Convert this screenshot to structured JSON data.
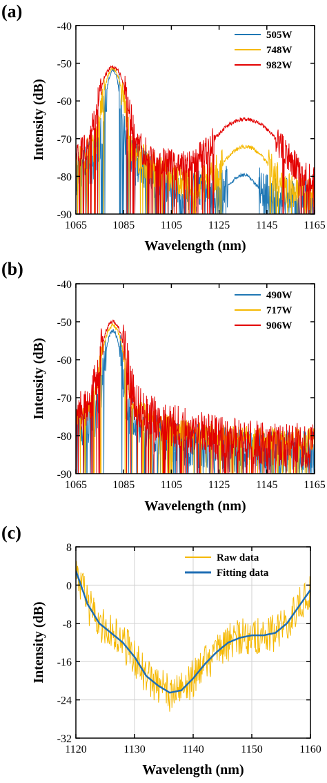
{
  "colors": {
    "blue": "#1f77b4",
    "orange": "#f5b800",
    "red": "#e30000",
    "fit": "#1f6eb4"
  },
  "chart_data": [
    {
      "type": "line",
      "panel_label": "(a)",
      "xlabel": "Wavelength (nm)",
      "ylabel": "Intensity (dB)",
      "xlim": [
        1065,
        1165
      ],
      "ylim": [
        -90,
        -40
      ],
      "xticks": [
        1065,
        1085,
        1105,
        1125,
        1145,
        1165
      ],
      "yticks": [
        -40,
        -50,
        -60,
        -70,
        -80,
        -90
      ],
      "legend_position": "top-right",
      "series": [
        {
          "name": "505W",
          "color": "#1f77b4",
          "peaks": [
            {
              "center": 1080.5,
              "level": -52,
              "width": 1.6
            },
            {
              "center": 1135,
              "level": -81,
              "width": 4
            }
          ],
          "noise_floor": -87,
          "noise_amplitude": 6
        },
        {
          "name": "748W",
          "color": "#f5b800",
          "peaks": [
            {
              "center": 1080.5,
              "level": -51.5,
              "width": 2.2
            },
            {
              "center": 1136,
              "level": -72.5,
              "width": 6
            }
          ],
          "noise_floor": -86,
          "noise_amplitude": 5
        },
        {
          "name": "982W",
          "color": "#e30000",
          "peaks": [
            {
              "center": 1080.5,
              "level": -51,
              "width": 3
            },
            {
              "center": 1136,
              "level": -65,
              "width": 8
            }
          ],
          "noise_floor": -84,
          "noise_amplitude": 4
        }
      ]
    },
    {
      "type": "line",
      "panel_label": "(b)",
      "xlabel": "Wavelength (nm)",
      "ylabel": "Intensity (dB)",
      "xlim": [
        1065,
        1165
      ],
      "ylim": [
        -90,
        -40
      ],
      "xticks": [
        1065,
        1085,
        1105,
        1125,
        1145,
        1165
      ],
      "yticks": [
        -40,
        -50,
        -60,
        -70,
        -80,
        -90
      ],
      "legend_position": "top-right",
      "series": [
        {
          "name": "490W",
          "color": "#1f77b4",
          "peaks": [
            {
              "center": 1080.5,
              "level": -52.5,
              "width": 1.8
            }
          ],
          "noise_floor": -85,
          "noise_amplitude": 6
        },
        {
          "name": "717W",
          "color": "#f5b800",
          "peaks": [
            {
              "center": 1080.5,
              "level": -51,
              "width": 2.4
            }
          ],
          "noise_floor": -81.5,
          "noise_amplitude": 3
        },
        {
          "name": "906W",
          "color": "#e30000",
          "peaks": [
            {
              "center": 1080.5,
              "level": -50,
              "width": 2.6
            }
          ],
          "noise_floor": -84,
          "noise_amplitude": 6
        }
      ]
    },
    {
      "type": "line",
      "panel_label": "(c)",
      "xlabel": "Wavelength (nm)",
      "ylabel": "Intensity (dB)",
      "xlim": [
        1120,
        1160
      ],
      "ylim": [
        -32,
        8
      ],
      "xticks": [
        1120,
        1130,
        1140,
        1150,
        1160
      ],
      "yticks": [
        8,
        0,
        -8,
        -16,
        -24,
        -32
      ],
      "grid": true,
      "legend_position": "top-right",
      "series": [
        {
          "name": "Raw data",
          "color": "#f5b800",
          "noise_amplitude": 4,
          "x": [
            1120,
            1122,
            1124,
            1126,
            1128,
            1130,
            1132,
            1134,
            1136,
            1138,
            1140,
            1142,
            1144,
            1146,
            1148,
            1150,
            1152,
            1154,
            1156,
            1158,
            1160
          ],
          "y": [
            3,
            -4,
            -8,
            -10,
            -12,
            -15,
            -19,
            -21,
            -22.5,
            -22,
            -19.5,
            -16.5,
            -14,
            -12,
            -11,
            -10.5,
            -10.5,
            -10,
            -8,
            -4.5,
            -1
          ]
        },
        {
          "name": "Fitting data",
          "color": "#1f6eb4",
          "x": [
            1120,
            1122,
            1124,
            1126,
            1128,
            1130,
            1132,
            1134,
            1136,
            1138,
            1140,
            1142,
            1144,
            1146,
            1148,
            1150,
            1152,
            1154,
            1156,
            1158,
            1160
          ],
          "y": [
            3,
            -4,
            -8,
            -10,
            -12,
            -15,
            -19,
            -21,
            -22.5,
            -22,
            -19.5,
            -16.5,
            -14,
            -12,
            -11,
            -10.5,
            -10.5,
            -10,
            -8,
            -4.5,
            -1
          ]
        }
      ]
    }
  ]
}
